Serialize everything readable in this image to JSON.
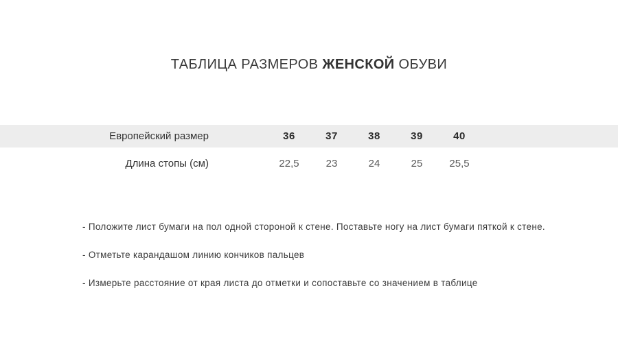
{
  "title": {
    "prefix": "ТАБЛИЦА РАЗМЕРОВ ",
    "highlight": "ЖЕНСКОЙ",
    "suffix": " ОБУВИ"
  },
  "size_table": {
    "header_row": {
      "label": "Европейский размер",
      "values": [
        "36",
        "37",
        "38",
        "39",
        "40"
      ]
    },
    "data_row": {
      "label": "Длина стопы (см)",
      "values": [
        "22,5",
        "23",
        "24",
        "25",
        "25,5"
      ]
    }
  },
  "instructions": {
    "items": [
      "- Положите лист бумаги на пол одной стороной к стене. Поставьте ногу на лист бумаги пяткой к стене.",
      "- Отметьте карандашом линию кончиков пальцев",
      "- Измерьте расстояние от края листа до отметки и сопоставьте со значением в таблице"
    ]
  },
  "colors": {
    "row_highlight": "#ededed",
    "title_text": "#3a3a3a",
    "value_secondary": "#595959"
  }
}
